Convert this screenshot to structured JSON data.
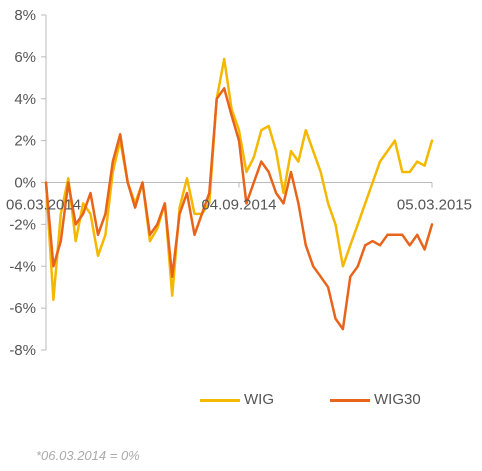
{
  "chart_data": {
    "type": "line",
    "title": "",
    "xlabel": "",
    "ylabel": "",
    "ylim": [
      -8,
      8
    ],
    "yticks": [
      -8,
      -6,
      -4,
      -2,
      0,
      2,
      4,
      6,
      8
    ],
    "ytick_labels": [
      "-8%",
      "-6%",
      "-4%",
      "-2%",
      "0%",
      "2%",
      "4%",
      "6%",
      "8%"
    ],
    "x_range": [
      "06.03.2014",
      "05.03.2015"
    ],
    "xtick_labels": [
      "06.03.2014",
      "04.09.2014",
      "05.03.2015"
    ],
    "grid": false,
    "legend_position": "bottom",
    "x": [
      "2014-03-06",
      "2014-03-13",
      "2014-03-20",
      "2014-03-27",
      "2014-04-03",
      "2014-04-10",
      "2014-04-17",
      "2014-04-24",
      "2014-05-01",
      "2014-05-08",
      "2014-05-15",
      "2014-05-22",
      "2014-05-29",
      "2014-06-05",
      "2014-06-12",
      "2014-06-19",
      "2014-06-26",
      "2014-07-03",
      "2014-07-10",
      "2014-07-17",
      "2014-07-24",
      "2014-07-31",
      "2014-08-07",
      "2014-08-14",
      "2014-08-21",
      "2014-08-28",
      "2014-09-04",
      "2014-09-11",
      "2014-09-18",
      "2014-09-25",
      "2014-10-02",
      "2014-10-09",
      "2014-10-16",
      "2014-10-23",
      "2014-10-30",
      "2014-11-06",
      "2014-11-13",
      "2014-11-20",
      "2014-11-27",
      "2014-12-04",
      "2014-12-11",
      "2014-12-18",
      "2014-12-25",
      "2015-01-01",
      "2015-01-08",
      "2015-01-15",
      "2015-01-22",
      "2015-01-29",
      "2015-02-05",
      "2015-02-12",
      "2015-02-19",
      "2015-02-26",
      "2015-03-05"
    ],
    "series": [
      {
        "name": "WIG",
        "color": "#f5b800",
        "values": [
          0.0,
          -5.6,
          -1.5,
          0.2,
          -2.8,
          -1.0,
          -1.5,
          -3.5,
          -2.5,
          0.5,
          2.0,
          0.0,
          -1.0,
          0.0,
          -2.8,
          -2.2,
          -1.0,
          -5.4,
          -1.2,
          0.2,
          -1.5,
          -1.5,
          -1.0,
          4.0,
          5.9,
          3.5,
          2.5,
          0.5,
          1.2,
          2.5,
          2.7,
          1.5,
          -0.5,
          1.5,
          1.0,
          2.5,
          1.5,
          0.5,
          -1.0,
          -2.0,
          -4.0,
          -3.0,
          -2.0,
          -1.0,
          0.0,
          1.0,
          1.5,
          2.0,
          0.5,
          0.5,
          1.0,
          0.8,
          2.0
        ]
      },
      {
        "name": "WIG30",
        "color": "#e8641b",
        "values": [
          0.0,
          -4.0,
          -2.8,
          0.0,
          -2.0,
          -1.5,
          -0.5,
          -2.5,
          -1.5,
          1.0,
          2.3,
          0.0,
          -1.2,
          0.0,
          -2.5,
          -2.0,
          -1.0,
          -4.5,
          -1.5,
          -0.5,
          -2.5,
          -1.5,
          -0.5,
          4.0,
          4.5,
          3.2,
          2.0,
          -1.0,
          0.0,
          1.0,
          0.5,
          -0.5,
          -1.0,
          0.5,
          -1.0,
          -3.0,
          -4.0,
          -4.5,
          -5.0,
          -6.5,
          -7.0,
          -4.5,
          -4.0,
          -3.0,
          -2.8,
          -3.0,
          -2.5,
          -2.5,
          -2.5,
          -3.0,
          -2.5,
          -3.2,
          -2.0
        ]
      }
    ]
  },
  "legend": {
    "items": [
      {
        "label": "WIG",
        "color": "#f5b800"
      },
      {
        "label": "WIG30",
        "color": "#e8641b"
      }
    ]
  },
  "footnote": "*06.03.2014 = 0%"
}
